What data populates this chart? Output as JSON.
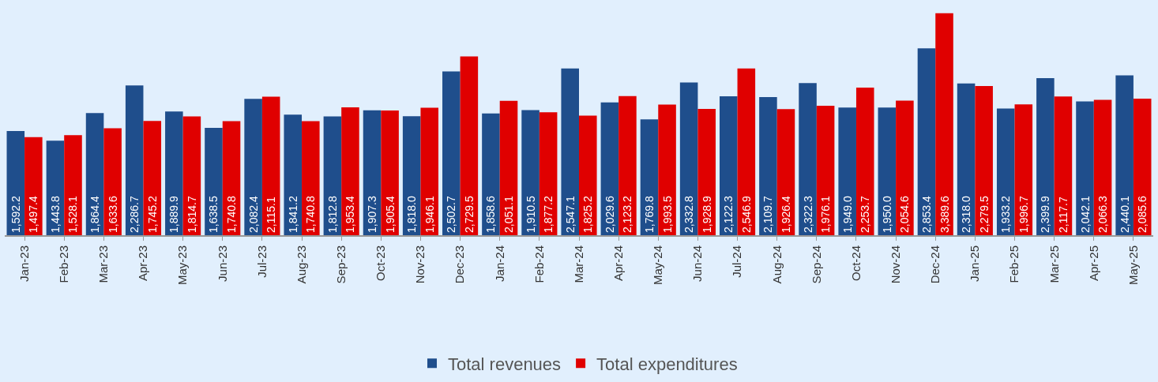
{
  "chart_data": {
    "type": "bar",
    "categories": [
      "Jan-23",
      "Feb-23",
      "Mar-23",
      "Apr-23",
      "May-23",
      "Jun-23",
      "Jul-23",
      "Aug-23",
      "Sep-23",
      "Oct-23",
      "Nov-23",
      "Dec-23",
      "Jan-24",
      "Feb-24",
      "Mar-24",
      "Apr-24",
      "May-24",
      "Jun-24",
      "Jul-24",
      "Aug-24",
      "Sep-24",
      "Oct-24",
      "Nov-24",
      "Dec-24",
      "Jan-25",
      "Feb-25",
      "Mar-25",
      "Apr-25",
      "May-25"
    ],
    "series": [
      {
        "name": "Total revenues",
        "color": "#1f4e8c",
        "values": [
          1592.2,
          1443.8,
          1864.4,
          2286.7,
          1889.9,
          1638.5,
          2082.4,
          1841.2,
          1812.8,
          1907.3,
          1818.0,
          2502.7,
          1858.6,
          1910.5,
          2547.1,
          2029.6,
          1769.8,
          2332.8,
          2122.3,
          2109.7,
          2322.3,
          1949.0,
          1950.0,
          2853.4,
          2318.0,
          1933.2,
          2399.9,
          2042.1,
          2440.1
        ],
        "value_labels": [
          "1,592.2",
          "1,443.8",
          "1,864.4",
          "2,286.7",
          "1,889.9",
          "1,638.5",
          "2,082.4",
          "1,841.2",
          "1,812.8",
          "1,907.3",
          "1,818.0",
          "2,502.7",
          "1,858.6",
          "1,910.5",
          "2,547.1",
          "2,029.6",
          "1,769.8",
          "2,332.8",
          "2,122.3",
          "2,109.7",
          "2,322.3",
          "1,949.0",
          "1,950.0",
          "2,853.4",
          "2,318.0",
          "1,933.2",
          "2,399.9",
          "2,042.1",
          "2,440.1"
        ]
      },
      {
        "name": "Total expenditures",
        "color": "#e00000",
        "values": [
          1497.4,
          1528.1,
          1633.6,
          1745.2,
          1814.7,
          1740.8,
          2115.1,
          1740.8,
          1953.4,
          1905.4,
          1946.1,
          2729.5,
          2051.1,
          1877.2,
          1825.2,
          2123.2,
          1993.5,
          1928.9,
          2546.9,
          1926.4,
          1976.1,
          2253.7,
          2054.6,
          3389.6,
          2279.5,
          1996.7,
          2117.7,
          2066.3,
          2085.6
        ],
        "value_labels": [
          "1,497.4",
          "1,528.1",
          "1,633.6",
          "1,745.2",
          "1,814.7",
          "1,740.8",
          "2,115.1",
          "1,740.8",
          "1,953.4",
          "1,905.4",
          "1,946.1",
          "2,729.5",
          "2,051.1",
          "1,877.2",
          "1,825.2",
          "2,123.2",
          "1,993.5",
          "1,928.9",
          "2,546.9",
          "1,926.4",
          "1,976.1",
          "2,253.7",
          "2,054.6",
          "3,389.6",
          "2,279.5",
          "1,996.7",
          "2,117.7",
          "2,066.3",
          "2,085.6"
        ]
      }
    ],
    "legend": "bottom",
    "grid": false
  }
}
